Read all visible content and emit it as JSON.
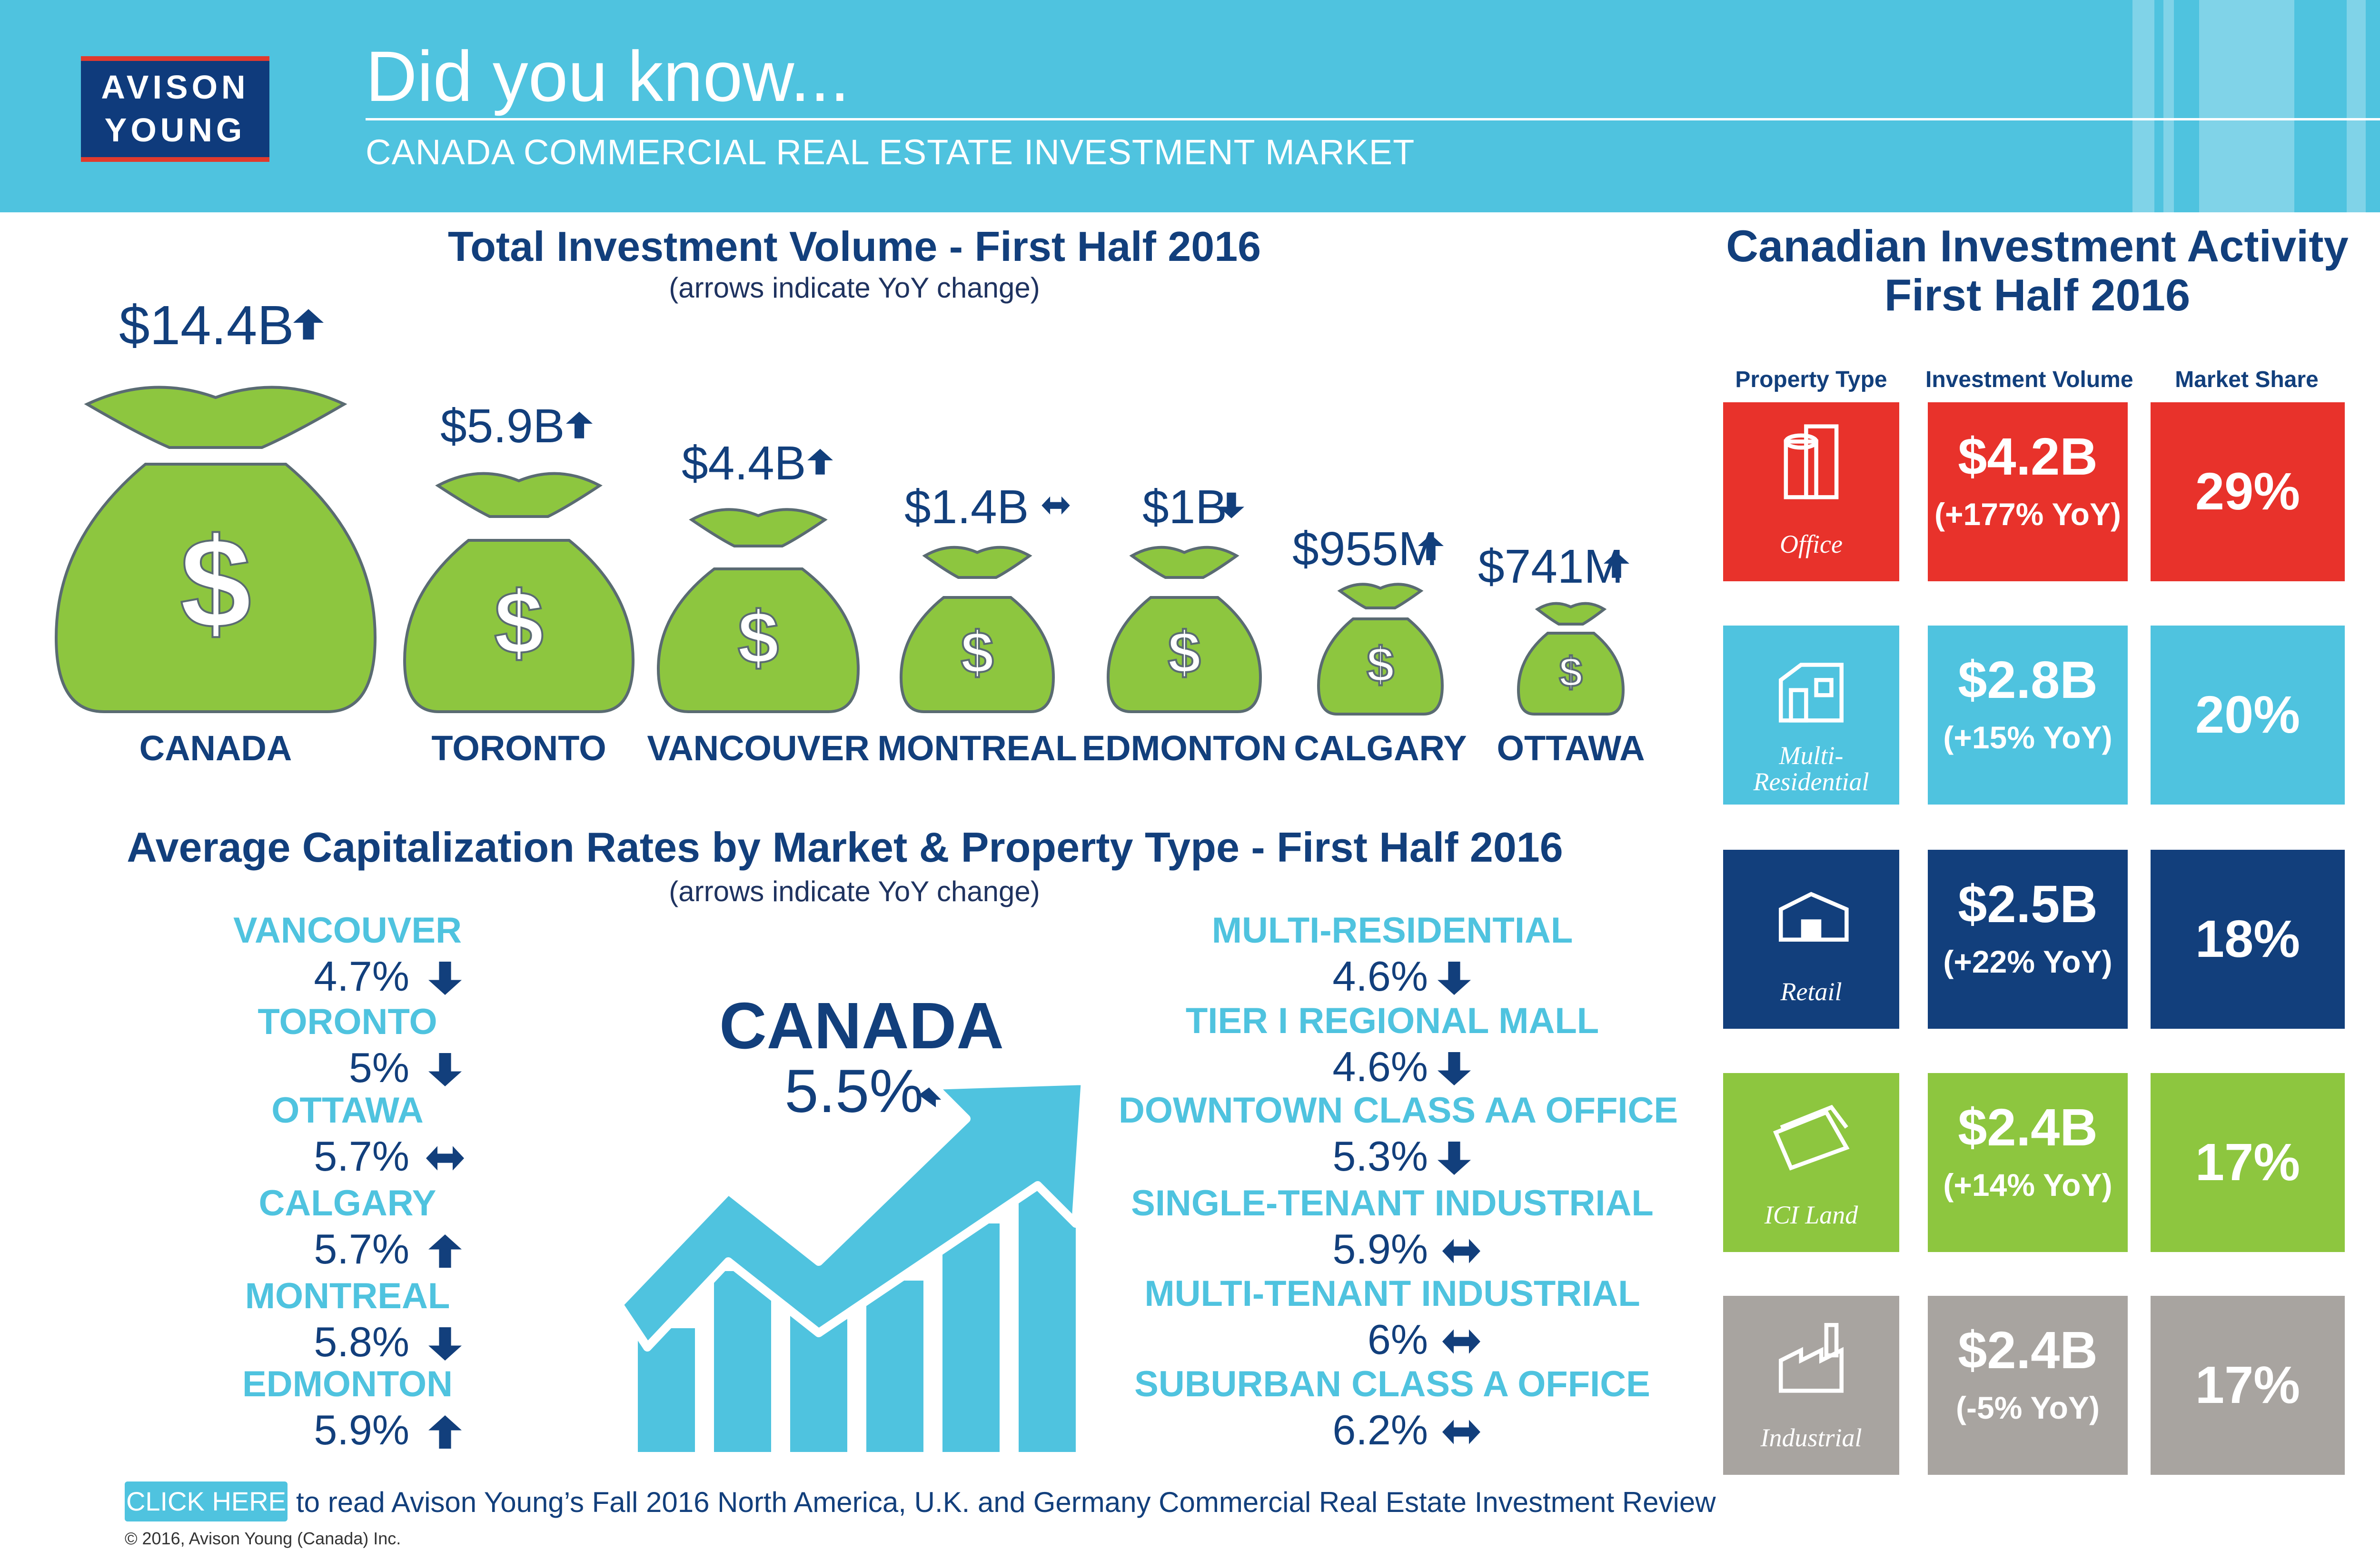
{
  "colors": {
    "navy": "#123f7c",
    "cyan": "#4fc3df",
    "green": "#8dc63f",
    "red": "#e8322b",
    "gray": "#a8a4a0",
    "money_bag": "#8dc63f"
  },
  "header": {
    "logo_line1": "AVISON",
    "logo_line2": "YOUNG",
    "title": "Did you know...",
    "subtitle": "CANADA COMMERCIAL REAL ESTATE INVESTMENT MARKET"
  },
  "investment_volume": {
    "title": "Total Investment Volume - First Half 2016",
    "note": "(arrows indicate YoY change)",
    "markets": [
      {
        "name": "CANADA",
        "amount": "$14.4B",
        "trend": "up",
        "trend_icon": "arrow-up-icon"
      },
      {
        "name": "TORONTO",
        "amount": "$5.9B",
        "trend": "up",
        "trend_icon": "arrow-up-icon"
      },
      {
        "name": "VANCOUVER",
        "amount": "$4.4B",
        "trend": "up",
        "trend_icon": "arrow-up-icon"
      },
      {
        "name": "MONTREAL",
        "amount": "$1.4B",
        "trend": "flat",
        "trend_icon": "arrow-both-icon"
      },
      {
        "name": "EDMONTON",
        "amount": "$1B",
        "trend": "down",
        "trend_icon": "arrow-down-icon"
      },
      {
        "name": "CALGARY",
        "amount": "$955M",
        "trend": "up",
        "trend_icon": "arrow-up-icon"
      },
      {
        "name": "OTTAWA",
        "amount": "$741M",
        "trend": "up",
        "trend_icon": "arrow-up-icon"
      }
    ],
    "bag_symbol": "$"
  },
  "cap_rates": {
    "title": "Average Capitalization Rates by Market & Property Type - First Half 2016",
    "note": "(arrows indicate YoY change)",
    "by_market": [
      {
        "name": "VANCOUVER",
        "rate": "4.7%",
        "trend": "down"
      },
      {
        "name": "TORONTO",
        "rate": "5%",
        "trend": "down"
      },
      {
        "name": "OTTAWA",
        "rate": "5.7%",
        "trend": "flat"
      },
      {
        "name": "CALGARY",
        "rate": "5.7%",
        "trend": "up"
      },
      {
        "name": "MONTREAL",
        "rate": "5.8%",
        "trend": "down"
      },
      {
        "name": "EDMONTON",
        "rate": "5.9%",
        "trend": "up"
      }
    ],
    "canada": {
      "label": "CANADA",
      "rate": "5.5%",
      "trend": "flat"
    },
    "by_property": [
      {
        "name": "MULTI-RESIDENTIAL",
        "rate": "4.6%",
        "trend": "down"
      },
      {
        "name": "TIER I REGIONAL MALL",
        "rate": "4.6%",
        "trend": "down"
      },
      {
        "name": "DOWNTOWN CLASS AA OFFICE",
        "rate": "5.3%",
        "trend": "down"
      },
      {
        "name": "SINGLE-TENANT INDUSTRIAL",
        "rate": "5.9%",
        "trend": "flat"
      },
      {
        "name": "MULTI-TENANT INDUSTRIAL",
        "rate": "6%",
        "trend": "flat"
      },
      {
        "name": "SUBURBAN CLASS A OFFICE",
        "rate": "6.2%",
        "trend": "flat"
      }
    ]
  },
  "activity": {
    "title_line1": "Canadian Investment Activity",
    "title_line2": "First Half 2016",
    "col_property": "Property Type",
    "col_volume": "Investment Volume",
    "col_share": "Market Share",
    "rows": [
      {
        "type_line1": "Office",
        "type_line2": "",
        "icon": "office-building-icon",
        "volume": "$4.2B",
        "yoy": "(+177% YoY)",
        "share": "29%",
        "color": "#e8322b"
      },
      {
        "type_line1": "Multi-",
        "type_line2": "Residential",
        "icon": "apartment-icon",
        "volume": "$2.8B",
        "yoy": "(+15% YoY)",
        "share": "20%",
        "color": "#4fc3df"
      },
      {
        "type_line1": "Retail",
        "type_line2": "",
        "icon": "store-icon",
        "volume": "$2.5B",
        "yoy": "(+22% YoY)",
        "share": "18%",
        "color": "#123f7c"
      },
      {
        "type_line1": "ICI Land",
        "type_line2": "",
        "icon": "land-icon",
        "volume": "$2.4B",
        "yoy": "(+14% YoY)",
        "share": "17%",
        "color": "#8dc63f"
      },
      {
        "type_line1": "Industrial",
        "type_line2": "",
        "icon": "factory-icon",
        "volume": "$2.4B",
        "yoy": "(-5% YoY)",
        "share": "17%",
        "color": "#a8a4a0"
      }
    ]
  },
  "footer": {
    "cta_button": "CLICK HERE",
    "cta_text": "to read Avison Young’s Fall 2016 North America, U.K. and Germany Commercial Real Estate Investment Review",
    "copyright": "© 2016, Avison Young (Canada) Inc."
  }
}
